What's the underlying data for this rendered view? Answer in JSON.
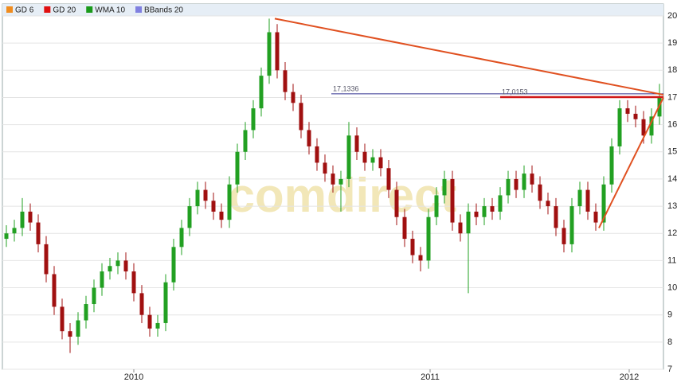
{
  "chart_data": {
    "type": "candlestick",
    "watermark": "comdirect",
    "indicators": [
      {
        "name": "GD 6",
        "color": "#f08c1e"
      },
      {
        "name": "GD 20",
        "color": "#e01010"
      },
      {
        "name": "WMA 10",
        "color": "#1a9a1a"
      },
      {
        "name": "BBands 20",
        "color": "#8080e0"
      }
    ],
    "up_color": "#22a022",
    "down_color": "#a01010",
    "open": [
      11.8,
      12.0,
      12.2,
      12.8,
      12.4,
      11.6,
      10.5,
      9.3,
      8.4,
      8.2,
      8.8,
      9.4,
      10.0,
      10.6,
      10.8,
      11.0,
      10.6,
      9.8,
      9.0,
      8.5,
      8.7,
      10.2,
      11.5,
      12.2,
      13.0,
      13.6,
      13.2,
      12.8,
      12.5,
      13.8,
      15.0,
      15.8,
      16.6,
      17.8,
      19.4,
      18.0,
      17.2,
      16.8,
      15.8,
      15.2,
      14.6,
      14.2,
      13.8,
      14.0,
      15.6,
      15.0,
      14.6,
      14.8,
      14.4,
      13.6,
      12.6,
      11.8,
      11.2,
      11.0,
      12.6,
      13.4,
      14.0,
      12.4,
      12.0,
      12.8,
      12.6,
      13.0,
      12.8,
      13.4,
      14.0,
      13.6,
      14.2,
      13.8,
      13.2,
      13.0,
      12.2,
      11.6,
      13.0,
      13.6,
      12.8,
      12.4,
      13.8,
      15.2,
      16.6,
      16.4,
      16.2,
      15.6,
      16.3
    ],
    "high": [
      12.3,
      12.5,
      13.3,
      13.1,
      12.7,
      11.9,
      10.8,
      9.6,
      8.7,
      9.1,
      9.7,
      10.3,
      10.9,
      11.1,
      11.3,
      11.3,
      10.9,
      10.1,
      9.3,
      9.0,
      10.5,
      11.8,
      12.5,
      13.3,
      13.9,
      13.9,
      13.5,
      13.1,
      14.1,
      15.3,
      16.1,
      16.9,
      18.1,
      19.9,
      19.7,
      18.3,
      17.5,
      17.1,
      16.1,
      15.5,
      14.9,
      14.5,
      14.3,
      16.1,
      15.9,
      15.3,
      15.1,
      15.1,
      14.7,
      13.9,
      12.9,
      12.1,
      11.5,
      12.9,
      13.7,
      14.3,
      14.3,
      12.7,
      13.1,
      13.1,
      13.3,
      13.3,
      13.7,
      14.3,
      14.3,
      14.5,
      14.5,
      14.1,
      13.5,
      13.3,
      12.5,
      13.3,
      13.9,
      13.9,
      13.1,
      14.1,
      15.5,
      16.9,
      16.9,
      16.7,
      16.5,
      16.6,
      17.5
    ],
    "low": [
      11.5,
      11.7,
      11.9,
      12.1,
      11.3,
      10.2,
      9.0,
      8.1,
      7.6,
      7.9,
      8.5,
      9.1,
      9.7,
      10.3,
      10.5,
      10.3,
      9.5,
      8.7,
      8.2,
      8.2,
      8.4,
      9.9,
      11.2,
      11.9,
      12.7,
      12.9,
      12.5,
      12.2,
      12.2,
      13.5,
      14.7,
      15.5,
      16.3,
      17.5,
      17.7,
      16.9,
      16.5,
      15.5,
      14.9,
      14.3,
      13.9,
      13.5,
      12.8,
      13.7,
      14.7,
      14.3,
      14.3,
      14.1,
      13.3,
      12.3,
      11.5,
      10.9,
      10.6,
      10.7,
      12.3,
      13.1,
      12.1,
      11.7,
      9.8,
      12.3,
      12.3,
      12.5,
      12.5,
      13.1,
      13.3,
      13.3,
      13.5,
      12.9,
      12.7,
      11.9,
      11.3,
      11.3,
      12.7,
      12.5,
      12.1,
      12.1,
      13.5,
      14.9,
      16.1,
      15.9,
      15.3,
      15.3,
      16.0
    ],
    "close": [
      12.0,
      12.2,
      12.8,
      12.4,
      11.6,
      10.5,
      9.3,
      8.4,
      8.2,
      8.8,
      9.4,
      10.0,
      10.6,
      10.8,
      11.0,
      10.6,
      9.8,
      9.0,
      8.5,
      8.7,
      10.2,
      11.5,
      12.2,
      13.0,
      13.6,
      13.2,
      12.8,
      12.5,
      13.8,
      15.0,
      15.8,
      16.6,
      17.8,
      19.4,
      18.0,
      17.2,
      16.8,
      15.8,
      15.2,
      14.6,
      14.2,
      13.8,
      14.0,
      15.6,
      15.0,
      14.6,
      14.8,
      14.4,
      13.6,
      12.6,
      11.8,
      11.2,
      11.0,
      12.6,
      13.4,
      14.0,
      12.4,
      12.0,
      12.8,
      12.6,
      13.0,
      12.8,
      13.4,
      14.0,
      13.6,
      14.2,
      13.8,
      13.2,
      13.0,
      12.2,
      11.6,
      13.0,
      13.6,
      12.8,
      12.4,
      13.8,
      15.2,
      16.6,
      16.4,
      16.2,
      15.6,
      16.3,
      17.0
    ],
    "xlim": [
      -0.5,
      82.5
    ],
    "xticks": [
      {
        "value": 16,
        "label": "2010"
      },
      {
        "value": 53.2,
        "label": "2011"
      },
      {
        "value": 78.2,
        "label": "2012"
      }
    ],
    "ylim": [
      7,
      20
    ],
    "yticks": [
      7,
      8,
      9,
      10,
      11,
      12,
      13,
      14,
      15,
      16,
      17,
      18,
      19,
      20
    ],
    "grid": true,
    "trend_lines": [
      {
        "x": [
          33.7,
          82.5
        ],
        "y": [
          19.9,
          17.1
        ],
        "color": "#e05020"
      },
      {
        "x": [
          74.4,
          82.5
        ],
        "y": [
          12.2,
          17.0
        ],
        "color": "#e05020"
      }
    ],
    "levels": [
      {
        "level": {
          "value": 17.1336,
          "label": "17,1336"
        },
        "x_start": 40.8,
        "color": "#303090"
      },
      {
        "level": {
          "value": 17.0153,
          "label": "17,0153"
        },
        "x_start": 62,
        "color": "#d01818"
      }
    ]
  }
}
